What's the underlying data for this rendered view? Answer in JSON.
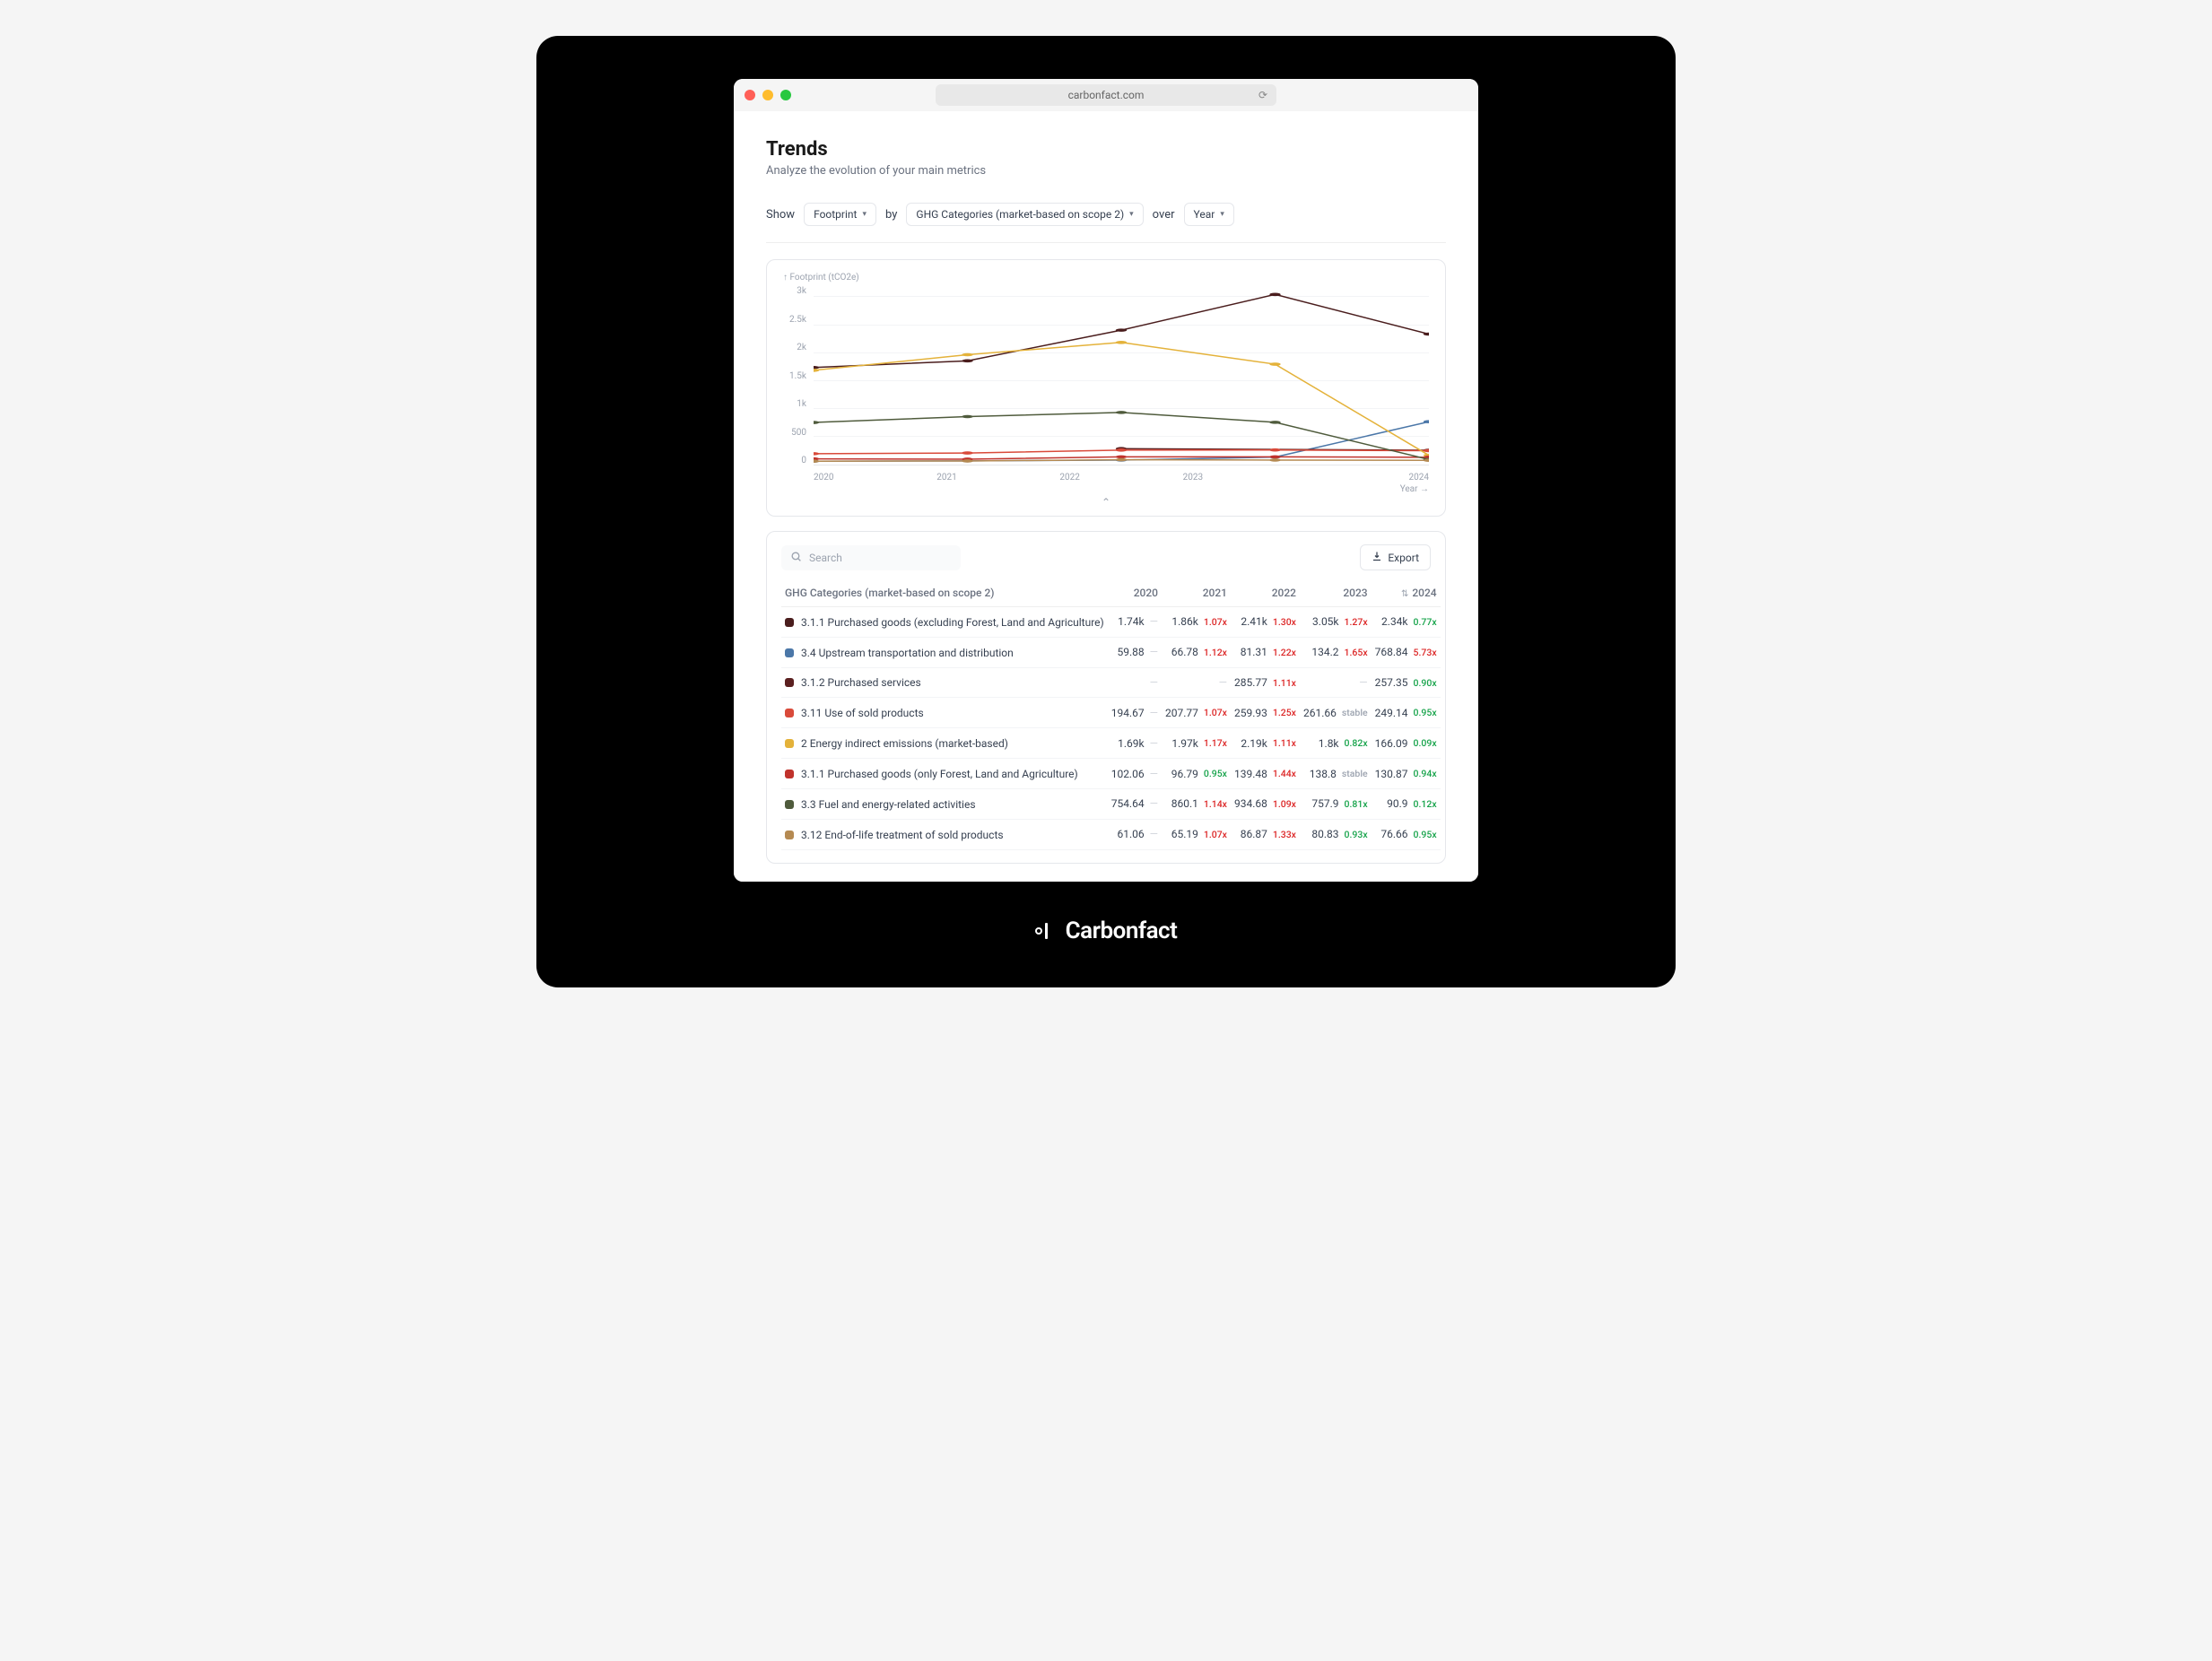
{
  "browser": {
    "url": "carbonfact.com"
  },
  "header": {
    "title": "Trends",
    "subtitle": "Analyze the evolution of your main metrics"
  },
  "filters": {
    "show_label": "Show",
    "show_value": "Footprint",
    "by_label": "by",
    "by_value": "GHG Categories (market-based on scope 2)",
    "over_label": "over",
    "over_value": "Year"
  },
  "chart": {
    "type": "line",
    "yaxis_label": "↑ Footprint (tCO2e)",
    "xaxis_label": "Year →",
    "ylim": [
      0,
      3200
    ],
    "yticks": [
      "3k",
      "2.5k",
      "2k",
      "1.5k",
      "1k",
      "500",
      "0"
    ],
    "xticks": [
      "2020",
      "2021",
      "2022",
      "2023",
      "2024"
    ],
    "grid_color": "#f3f4f6",
    "background_color": "#ffffff",
    "label_fontsize": 10,
    "label_color": "#9ca3af",
    "marker_radius": 2.5,
    "line_width": 1.5,
    "series": [
      {
        "color": "#4a1d1d",
        "values": [
          1740,
          1860,
          2410,
          3050,
          2340
        ]
      },
      {
        "color": "#4b77a8",
        "values": [
          60,
          67,
          81,
          134,
          769
        ]
      },
      {
        "color": "#5b2020",
        "values": [
          null,
          null,
          286,
          null,
          257
        ]
      },
      {
        "color": "#d94a3a",
        "values": [
          195,
          208,
          260,
          262,
          249
        ]
      },
      {
        "color": "#e4b23a",
        "values": [
          1690,
          1970,
          2190,
          1800,
          166
        ]
      },
      {
        "color": "#c0322c",
        "values": [
          102,
          97,
          139,
          139,
          131
        ]
      },
      {
        "color": "#4f5b3c",
        "values": [
          755,
          860,
          935,
          758,
          91
        ]
      },
      {
        "color": "#b58a52",
        "values": [
          61,
          65,
          87,
          81,
          77
        ]
      }
    ]
  },
  "table": {
    "search_placeholder": "Search",
    "export_label": "Export",
    "columns": {
      "category": "GHG Categories (market-based on scope 2)",
      "y2020": "2020",
      "y2021": "2021",
      "y2022": "2022",
      "y2023": "2023",
      "y2024": "2024"
    },
    "rows": [
      {
        "swatch": "#4a1d1d",
        "label": "3.1.1 Purchased goods (excluding Forest, Land and Agriculture)",
        "cells": [
          {
            "value": "1.74k",
            "delta": "—",
            "dir": "dash"
          },
          {
            "value": "1.86k",
            "delta": "1.07x",
            "dir": "up"
          },
          {
            "value": "2.41k",
            "delta": "1.30x",
            "dir": "up"
          },
          {
            "value": "3.05k",
            "delta": "1.27x",
            "dir": "up"
          },
          {
            "value": "2.34k",
            "delta": "0.77x",
            "dir": "down"
          }
        ]
      },
      {
        "swatch": "#4b77a8",
        "label": "3.4 Upstream transportation and distribution",
        "cells": [
          {
            "value": "59.88",
            "delta": "—",
            "dir": "dash"
          },
          {
            "value": "66.78",
            "delta": "1.12x",
            "dir": "up"
          },
          {
            "value": "81.31",
            "delta": "1.22x",
            "dir": "up"
          },
          {
            "value": "134.2",
            "delta": "1.65x",
            "dir": "up"
          },
          {
            "value": "768.84",
            "delta": "5.73x",
            "dir": "up"
          }
        ]
      },
      {
        "swatch": "#5b2020",
        "label": "3.1.2 Purchased services",
        "cells": [
          {
            "value": "",
            "delta": "—",
            "dir": "dash"
          },
          {
            "value": "",
            "delta": "—",
            "dir": "dash"
          },
          {
            "value": "285.77",
            "delta": "1.11x",
            "dir": "up"
          },
          {
            "value": "",
            "delta": "—",
            "dir": "dash"
          },
          {
            "value": "257.35",
            "delta": "0.90x",
            "dir": "down"
          }
        ]
      },
      {
        "swatch": "#d94a3a",
        "label": "3.11 Use of sold products",
        "cells": [
          {
            "value": "194.67",
            "delta": "—",
            "dir": "dash"
          },
          {
            "value": "207.77",
            "delta": "1.07x",
            "dir": "up"
          },
          {
            "value": "259.93",
            "delta": "1.25x",
            "dir": "up"
          },
          {
            "value": "261.66",
            "delta": "stable",
            "dir": "stable"
          },
          {
            "value": "249.14",
            "delta": "0.95x",
            "dir": "down"
          }
        ]
      },
      {
        "swatch": "#e4b23a",
        "label": "2 Energy indirect emissions (market-based)",
        "cells": [
          {
            "value": "1.69k",
            "delta": "—",
            "dir": "dash"
          },
          {
            "value": "1.97k",
            "delta": "1.17x",
            "dir": "up"
          },
          {
            "value": "2.19k",
            "delta": "1.11x",
            "dir": "up"
          },
          {
            "value": "1.8k",
            "delta": "0.82x",
            "dir": "down"
          },
          {
            "value": "166.09",
            "delta": "0.09x",
            "dir": "down"
          }
        ]
      },
      {
        "swatch": "#c0322c",
        "label": "3.1.1 Purchased goods (only Forest, Land and Agriculture)",
        "cells": [
          {
            "value": "102.06",
            "delta": "—",
            "dir": "dash"
          },
          {
            "value": "96.79",
            "delta": "0.95x",
            "dir": "down"
          },
          {
            "value": "139.48",
            "delta": "1.44x",
            "dir": "up"
          },
          {
            "value": "138.8",
            "delta": "stable",
            "dir": "stable"
          },
          {
            "value": "130.87",
            "delta": "0.94x",
            "dir": "down"
          }
        ]
      },
      {
        "swatch": "#4f5b3c",
        "label": "3.3 Fuel and energy-related activities",
        "cells": [
          {
            "value": "754.64",
            "delta": "—",
            "dir": "dash"
          },
          {
            "value": "860.1",
            "delta": "1.14x",
            "dir": "up"
          },
          {
            "value": "934.68",
            "delta": "1.09x",
            "dir": "up"
          },
          {
            "value": "757.9",
            "delta": "0.81x",
            "dir": "down"
          },
          {
            "value": "90.9",
            "delta": "0.12x",
            "dir": "down"
          }
        ]
      },
      {
        "swatch": "#b58a52",
        "label": "3.12 End-of-life treatment of sold products",
        "cells": [
          {
            "value": "61.06",
            "delta": "—",
            "dir": "dash"
          },
          {
            "value": "65.19",
            "delta": "1.07x",
            "dir": "up"
          },
          {
            "value": "86.87",
            "delta": "1.33x",
            "dir": "up"
          },
          {
            "value": "80.83",
            "delta": "0.93x",
            "dir": "down"
          },
          {
            "value": "76.66",
            "delta": "0.95x",
            "dir": "down"
          }
        ]
      }
    ]
  },
  "brand": {
    "name": "Carbonfact"
  }
}
